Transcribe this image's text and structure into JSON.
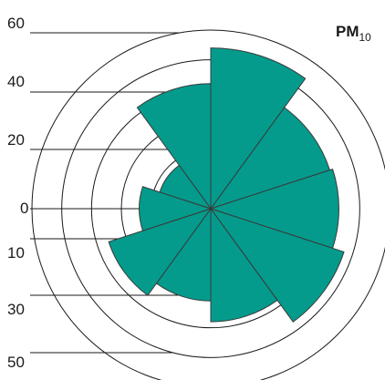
{
  "chart_data": {
    "type": "polar-bar",
    "title": "PM",
    "title_subscript": "10",
    "radial_tick_labels": [
      "60",
      "40",
      "20",
      "0",
      "10",
      "30",
      "50"
    ],
    "rings": [
      10,
      20,
      30,
      40,
      50,
      60
    ],
    "rmax": 60,
    "series": [
      {
        "sector_values": [
          42,
          54,
          42,
          43,
          47,
          38,
          31,
          36,
          24,
          18
        ],
        "color": "#049b8c"
      }
    ],
    "sector_count": 10,
    "grid": true,
    "legend": "none"
  }
}
